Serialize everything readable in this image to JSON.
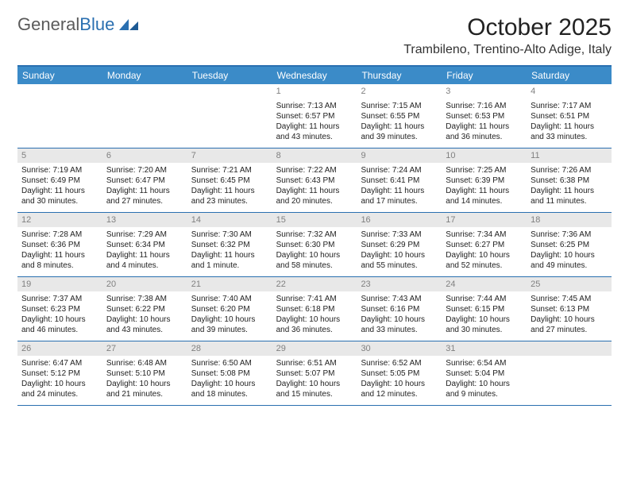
{
  "logo": {
    "main": "General",
    "accent": "Blue"
  },
  "title": "October 2025",
  "location": "Trambileno, Trentino-Alto Adige, Italy",
  "day_headers": [
    "Sunday",
    "Monday",
    "Tuesday",
    "Wednesday",
    "Thursday",
    "Friday",
    "Saturday"
  ],
  "colors": {
    "header_bg": "#3b8bc8",
    "border": "#2a6fb0",
    "daynum_bg": "#e8e8e8",
    "daynum_text": "#808080",
    "body_text": "#222222"
  },
  "weeks": [
    [
      {
        "day": "",
        "lines": []
      },
      {
        "day": "",
        "lines": []
      },
      {
        "day": "",
        "lines": []
      },
      {
        "day": "1",
        "lines": [
          "Sunrise: 7:13 AM",
          "Sunset: 6:57 PM",
          "Daylight: 11 hours",
          "and 43 minutes."
        ]
      },
      {
        "day": "2",
        "lines": [
          "Sunrise: 7:15 AM",
          "Sunset: 6:55 PM",
          "Daylight: 11 hours",
          "and 39 minutes."
        ]
      },
      {
        "day": "3",
        "lines": [
          "Sunrise: 7:16 AM",
          "Sunset: 6:53 PM",
          "Daylight: 11 hours",
          "and 36 minutes."
        ]
      },
      {
        "day": "4",
        "lines": [
          "Sunrise: 7:17 AM",
          "Sunset: 6:51 PM",
          "Daylight: 11 hours",
          "and 33 minutes."
        ]
      }
    ],
    [
      {
        "day": "5",
        "lines": [
          "Sunrise: 7:19 AM",
          "Sunset: 6:49 PM",
          "Daylight: 11 hours",
          "and 30 minutes."
        ]
      },
      {
        "day": "6",
        "lines": [
          "Sunrise: 7:20 AM",
          "Sunset: 6:47 PM",
          "Daylight: 11 hours",
          "and 27 minutes."
        ]
      },
      {
        "day": "7",
        "lines": [
          "Sunrise: 7:21 AM",
          "Sunset: 6:45 PM",
          "Daylight: 11 hours",
          "and 23 minutes."
        ]
      },
      {
        "day": "8",
        "lines": [
          "Sunrise: 7:22 AM",
          "Sunset: 6:43 PM",
          "Daylight: 11 hours",
          "and 20 minutes."
        ]
      },
      {
        "day": "9",
        "lines": [
          "Sunrise: 7:24 AM",
          "Sunset: 6:41 PM",
          "Daylight: 11 hours",
          "and 17 minutes."
        ]
      },
      {
        "day": "10",
        "lines": [
          "Sunrise: 7:25 AM",
          "Sunset: 6:39 PM",
          "Daylight: 11 hours",
          "and 14 minutes."
        ]
      },
      {
        "day": "11",
        "lines": [
          "Sunrise: 7:26 AM",
          "Sunset: 6:38 PM",
          "Daylight: 11 hours",
          "and 11 minutes."
        ]
      }
    ],
    [
      {
        "day": "12",
        "lines": [
          "Sunrise: 7:28 AM",
          "Sunset: 6:36 PM",
          "Daylight: 11 hours",
          "and 8 minutes."
        ]
      },
      {
        "day": "13",
        "lines": [
          "Sunrise: 7:29 AM",
          "Sunset: 6:34 PM",
          "Daylight: 11 hours",
          "and 4 minutes."
        ]
      },
      {
        "day": "14",
        "lines": [
          "Sunrise: 7:30 AM",
          "Sunset: 6:32 PM",
          "Daylight: 11 hours",
          "and 1 minute."
        ]
      },
      {
        "day": "15",
        "lines": [
          "Sunrise: 7:32 AM",
          "Sunset: 6:30 PM",
          "Daylight: 10 hours",
          "and 58 minutes."
        ]
      },
      {
        "day": "16",
        "lines": [
          "Sunrise: 7:33 AM",
          "Sunset: 6:29 PM",
          "Daylight: 10 hours",
          "and 55 minutes."
        ]
      },
      {
        "day": "17",
        "lines": [
          "Sunrise: 7:34 AM",
          "Sunset: 6:27 PM",
          "Daylight: 10 hours",
          "and 52 minutes."
        ]
      },
      {
        "day": "18",
        "lines": [
          "Sunrise: 7:36 AM",
          "Sunset: 6:25 PM",
          "Daylight: 10 hours",
          "and 49 minutes."
        ]
      }
    ],
    [
      {
        "day": "19",
        "lines": [
          "Sunrise: 7:37 AM",
          "Sunset: 6:23 PM",
          "Daylight: 10 hours",
          "and 46 minutes."
        ]
      },
      {
        "day": "20",
        "lines": [
          "Sunrise: 7:38 AM",
          "Sunset: 6:22 PM",
          "Daylight: 10 hours",
          "and 43 minutes."
        ]
      },
      {
        "day": "21",
        "lines": [
          "Sunrise: 7:40 AM",
          "Sunset: 6:20 PM",
          "Daylight: 10 hours",
          "and 39 minutes."
        ]
      },
      {
        "day": "22",
        "lines": [
          "Sunrise: 7:41 AM",
          "Sunset: 6:18 PM",
          "Daylight: 10 hours",
          "and 36 minutes."
        ]
      },
      {
        "day": "23",
        "lines": [
          "Sunrise: 7:43 AM",
          "Sunset: 6:16 PM",
          "Daylight: 10 hours",
          "and 33 minutes."
        ]
      },
      {
        "day": "24",
        "lines": [
          "Sunrise: 7:44 AM",
          "Sunset: 6:15 PM",
          "Daylight: 10 hours",
          "and 30 minutes."
        ]
      },
      {
        "day": "25",
        "lines": [
          "Sunrise: 7:45 AM",
          "Sunset: 6:13 PM",
          "Daylight: 10 hours",
          "and 27 minutes."
        ]
      }
    ],
    [
      {
        "day": "26",
        "lines": [
          "Sunrise: 6:47 AM",
          "Sunset: 5:12 PM",
          "Daylight: 10 hours",
          "and 24 minutes."
        ]
      },
      {
        "day": "27",
        "lines": [
          "Sunrise: 6:48 AM",
          "Sunset: 5:10 PM",
          "Daylight: 10 hours",
          "and 21 minutes."
        ]
      },
      {
        "day": "28",
        "lines": [
          "Sunrise: 6:50 AM",
          "Sunset: 5:08 PM",
          "Daylight: 10 hours",
          "and 18 minutes."
        ]
      },
      {
        "day": "29",
        "lines": [
          "Sunrise: 6:51 AM",
          "Sunset: 5:07 PM",
          "Daylight: 10 hours",
          "and 15 minutes."
        ]
      },
      {
        "day": "30",
        "lines": [
          "Sunrise: 6:52 AM",
          "Sunset: 5:05 PM",
          "Daylight: 10 hours",
          "and 12 minutes."
        ]
      },
      {
        "day": "31",
        "lines": [
          "Sunrise: 6:54 AM",
          "Sunset: 5:04 PM",
          "Daylight: 10 hours",
          "and 9 minutes."
        ]
      },
      {
        "day": "",
        "lines": []
      }
    ]
  ]
}
